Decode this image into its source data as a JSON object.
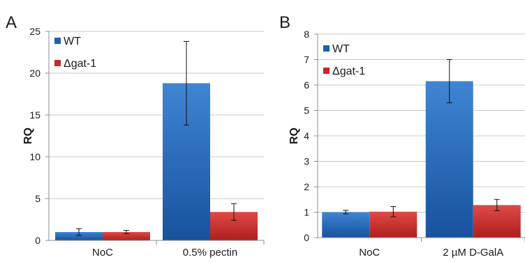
{
  "colors": {
    "wt": "#1f5fb0",
    "mut": "#c62828",
    "grid": "#c8c8c8",
    "axis": "#8c8c8c",
    "text": "#1a1a1a"
  },
  "chart_data": [
    {
      "panel": "A",
      "type": "bar",
      "categories": [
        "NoC",
        "0.5% pectin"
      ],
      "series": [
        {
          "name": "WT",
          "values": [
            1.0,
            18.8
          ],
          "error": [
            0.4,
            5.0
          ]
        },
        {
          "name": "Δgat-1",
          "values": [
            1.0,
            3.4
          ],
          "error": [
            0.2,
            1.0
          ]
        }
      ],
      "ylabel": "RQ",
      "ylim": [
        0,
        25
      ],
      "yticks": [
        0,
        5,
        10,
        15,
        20,
        25
      ],
      "grid": true,
      "legend": "top-left"
    },
    {
      "panel": "B",
      "type": "bar",
      "categories": [
        "NoC",
        "2 µM D-GalA"
      ],
      "series": [
        {
          "name": "WT",
          "values": [
            1.0,
            6.15
          ],
          "error": [
            0.07,
            0.85
          ]
        },
        {
          "name": "Δgat-1",
          "values": [
            1.02,
            1.28
          ],
          "error": [
            0.2,
            0.22
          ]
        }
      ],
      "ylabel": "RQ",
      "ylim": [
        0,
        8
      ],
      "yticks": [
        0,
        1,
        2,
        3,
        4,
        5,
        6,
        7,
        8
      ],
      "grid": true,
      "legend": "top-left"
    }
  ]
}
